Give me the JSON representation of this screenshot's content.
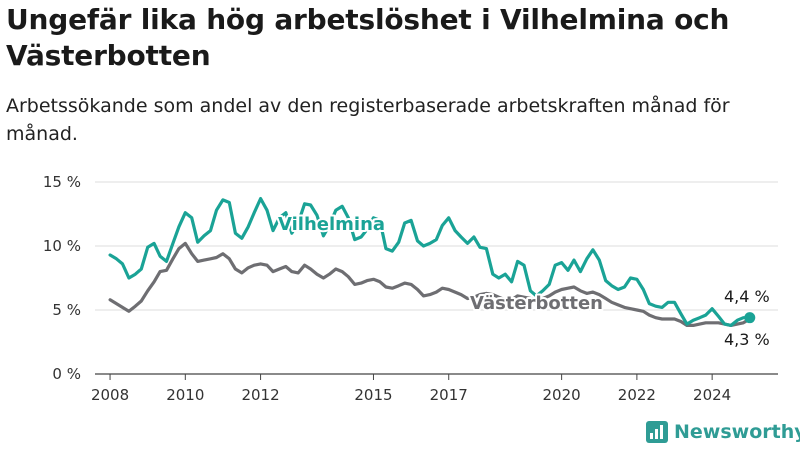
{
  "title": "Ungefär lika hög arbetslöshet i Vilhelmina och Västerbotten",
  "subtitle": "Arbetssökande som andel av den registerbaserade arbetskraften månad för månad.",
  "brand": "Newsworthy",
  "colors": {
    "vilhelmina": "#1aa396",
    "vasterbotten": "#6e6e72",
    "grid": "#dddddd",
    "axis": "#444444"
  },
  "chart_data": {
    "type": "line",
    "title": "Ungefär lika hög arbetslöshet i Vilhelmina och Västerbotten",
    "subtitle": "Arbetssökande som andel av den registerbaserade arbetskraften månad för månad.",
    "xlabel": "",
    "ylabel": "",
    "ylim": [
      0,
      15
    ],
    "y_ticks": [
      0,
      5,
      10,
      15
    ],
    "y_tick_labels": [
      "0 %",
      "5 %",
      "10 %",
      "15 %"
    ],
    "x_ticks": [
      2008,
      2010,
      2012,
      2015,
      2017,
      2020,
      2022,
      2024
    ],
    "x_tick_labels": [
      "2008",
      "2010",
      "2012",
      "2015",
      "2017",
      "2020",
      "2022",
      "2024"
    ],
    "xlim": [
      2007.6,
      2025.75
    ],
    "grid": true,
    "legend": "inline labels",
    "series": [
      {
        "name": "Vilhelmina",
        "end_label": "4,4 %",
        "x": [
          2008.0,
          2008.17,
          2008.33,
          2008.5,
          2008.67,
          2008.83,
          2009.0,
          2009.17,
          2009.33,
          2009.5,
          2009.67,
          2009.83,
          2010.0,
          2010.17,
          2010.33,
          2010.5,
          2010.67,
          2010.83,
          2011.0,
          2011.17,
          2011.33,
          2011.5,
          2011.67,
          2011.83,
          2012.0,
          2012.17,
          2012.33,
          2012.5,
          2012.67,
          2012.83,
          2013.0,
          2013.17,
          2013.33,
          2013.5,
          2013.67,
          2013.83,
          2014.0,
          2014.17,
          2014.33,
          2014.5,
          2014.67,
          2014.83,
          2015.0,
          2015.17,
          2015.33,
          2015.5,
          2015.67,
          2015.83,
          2016.0,
          2016.17,
          2016.33,
          2016.5,
          2016.67,
          2016.83,
          2017.0,
          2017.17,
          2017.33,
          2017.5,
          2017.67,
          2017.83,
          2018.0,
          2018.17,
          2018.33,
          2018.5,
          2018.67,
          2018.83,
          2019.0,
          2019.17,
          2019.33,
          2019.5,
          2019.67,
          2019.83,
          2020.0,
          2020.17,
          2020.33,
          2020.5,
          2020.67,
          2020.83,
          2021.0,
          2021.17,
          2021.33,
          2021.5,
          2021.67,
          2021.83,
          2022.0,
          2022.17,
          2022.33,
          2022.5,
          2022.67,
          2022.83,
          2023.0,
          2023.17,
          2023.33,
          2023.5,
          2023.67,
          2023.83,
          2024.0,
          2024.17,
          2024.33,
          2024.5,
          2024.67,
          2024.83,
          2025.0
        ],
        "values": [
          9.3,
          9.0,
          8.6,
          7.5,
          7.8,
          8.2,
          9.9,
          10.2,
          9.2,
          8.8,
          10.2,
          11.5,
          12.6,
          12.2,
          10.3,
          10.8,
          11.2,
          12.8,
          13.6,
          13.4,
          11.0,
          10.6,
          11.5,
          12.6,
          13.7,
          12.8,
          11.2,
          12.2,
          12.6,
          11.0,
          11.8,
          13.3,
          13.2,
          12.4,
          10.8,
          11.6,
          12.8,
          13.1,
          12.2,
          10.5,
          10.7,
          11.3,
          12.2,
          12.0,
          9.8,
          9.6,
          10.3,
          11.8,
          12.0,
          10.4,
          10.0,
          10.2,
          10.5,
          11.6,
          12.2,
          11.2,
          10.7,
          10.2,
          10.7,
          9.9,
          9.8,
          7.8,
          7.5,
          7.8,
          7.2,
          8.8,
          8.5,
          6.5,
          6.1,
          6.5,
          7.0,
          8.5,
          8.7,
          8.1,
          8.9,
          8.0,
          9.0,
          9.7,
          8.9,
          7.3,
          6.9,
          6.6,
          6.8,
          7.5,
          7.4,
          6.6,
          5.5,
          5.3,
          5.2,
          5.6,
          5.6,
          4.7,
          3.9,
          4.2,
          4.4,
          4.6,
          5.1,
          4.5,
          3.9,
          3.8,
          4.2,
          4.4,
          4.4
        ]
      },
      {
        "name": "Västerbotten",
        "end_label": "4,3 %",
        "x": [
          2008.0,
          2008.17,
          2008.33,
          2008.5,
          2008.67,
          2008.83,
          2009.0,
          2009.17,
          2009.33,
          2009.5,
          2009.67,
          2009.83,
          2010.0,
          2010.17,
          2010.33,
          2010.5,
          2010.67,
          2010.83,
          2011.0,
          2011.17,
          2011.33,
          2011.5,
          2011.67,
          2011.83,
          2012.0,
          2012.17,
          2012.33,
          2012.5,
          2012.67,
          2012.83,
          2013.0,
          2013.17,
          2013.33,
          2013.5,
          2013.67,
          2013.83,
          2014.0,
          2014.17,
          2014.33,
          2014.5,
          2014.67,
          2014.83,
          2015.0,
          2015.17,
          2015.33,
          2015.5,
          2015.67,
          2015.83,
          2016.0,
          2016.17,
          2016.33,
          2016.5,
          2016.67,
          2016.83,
          2017.0,
          2017.17,
          2017.33,
          2017.5,
          2017.67,
          2017.83,
          2018.0,
          2018.17,
          2018.33,
          2018.5,
          2018.67,
          2018.83,
          2019.0,
          2019.17,
          2019.33,
          2019.5,
          2019.67,
          2019.83,
          2020.0,
          2020.17,
          2020.33,
          2020.5,
          2020.67,
          2020.83,
          2021.0,
          2021.17,
          2021.33,
          2021.5,
          2021.67,
          2021.83,
          2022.0,
          2022.17,
          2022.33,
          2022.5,
          2022.67,
          2022.83,
          2023.0,
          2023.17,
          2023.33,
          2023.5,
          2023.67,
          2023.83,
          2024.0,
          2024.17,
          2024.33,
          2024.5,
          2024.67,
          2024.83,
          2025.0
        ],
        "values": [
          5.8,
          5.5,
          5.2,
          4.9,
          5.3,
          5.7,
          6.5,
          7.2,
          8.0,
          8.1,
          9.0,
          9.8,
          10.2,
          9.4,
          8.8,
          8.9,
          9.0,
          9.1,
          9.4,
          9.0,
          8.2,
          7.9,
          8.3,
          8.5,
          8.6,
          8.5,
          8.0,
          8.2,
          8.4,
          8.0,
          7.9,
          8.5,
          8.2,
          7.8,
          7.5,
          7.8,
          8.2,
          8.0,
          7.6,
          7.0,
          7.1,
          7.3,
          7.4,
          7.2,
          6.8,
          6.7,
          6.9,
          7.1,
          7.0,
          6.6,
          6.1,
          6.2,
          6.4,
          6.7,
          6.6,
          6.4,
          6.2,
          5.9,
          6.0,
          6.2,
          6.3,
          6.2,
          6.0,
          5.8,
          5.8,
          6.1,
          6.0,
          5.9,
          5.8,
          5.9,
          6.1,
          6.4,
          6.6,
          6.7,
          6.8,
          6.5,
          6.3,
          6.4,
          6.2,
          5.9,
          5.6,
          5.4,
          5.2,
          5.1,
          5.0,
          4.9,
          4.6,
          4.4,
          4.3,
          4.3,
          4.3,
          4.1,
          3.8,
          3.8,
          3.9,
          4.0,
          4.0,
          4.0,
          3.9,
          3.8,
          3.9,
          4.0,
          4.3
        ]
      }
    ]
  }
}
